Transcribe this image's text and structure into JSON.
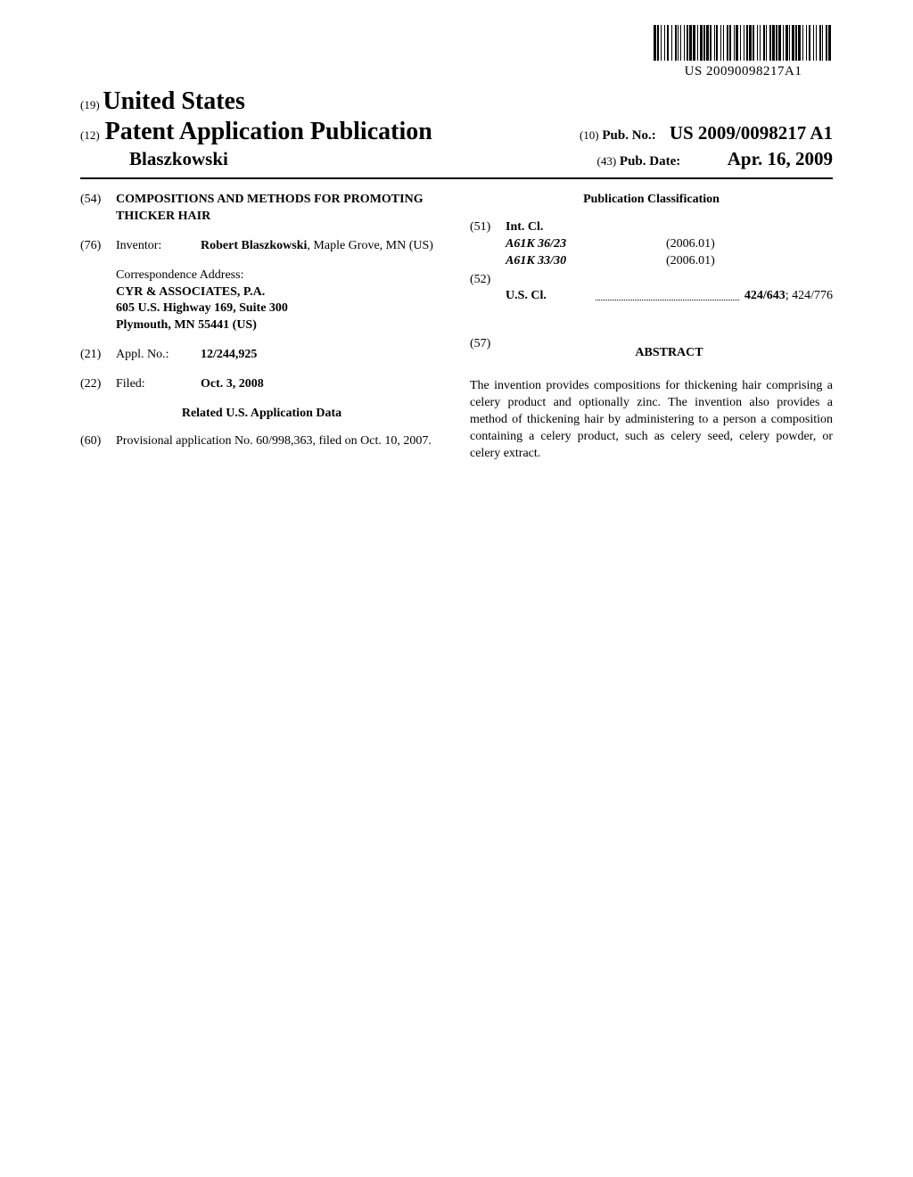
{
  "barcode": {
    "text": "US 20090098217A1",
    "widths": [
      3,
      1,
      2,
      2,
      1,
      3,
      1,
      2,
      2,
      3,
      1,
      3,
      2,
      1,
      1,
      2,
      1,
      3,
      1,
      2,
      2,
      1,
      3,
      1,
      3,
      2,
      1,
      2,
      3,
      1,
      2,
      1,
      3,
      1,
      2,
      3,
      1,
      1,
      2,
      3,
      1,
      2,
      1,
      3,
      2,
      1,
      2,
      3,
      1,
      1,
      3,
      2,
      1,
      3,
      1,
      2,
      2,
      1,
      3,
      1,
      2,
      3,
      1,
      2,
      1,
      3,
      2,
      1,
      1,
      3,
      2,
      1,
      3,
      1,
      2,
      1,
      3,
      2,
      1,
      2,
      3,
      1,
      1,
      2,
      3,
      1,
      2,
      1,
      3,
      2,
      1,
      3,
      1,
      2,
      2,
      3,
      1,
      2,
      1,
      3,
      2,
      1,
      1,
      3,
      2,
      1,
      3,
      2
    ]
  },
  "header": {
    "country_code": "(19)",
    "country": "United States",
    "kind_code": "(12)",
    "kind": "Patent Application Publication",
    "author": "Blaszkowski",
    "pubno_code": "(10)",
    "pubno_label": "Pub. No.:",
    "pubno": "US 2009/0098217 A1",
    "date_code": "(43)",
    "date_label": "Pub. Date:",
    "date": "Apr. 16, 2009"
  },
  "left": {
    "title_code": "(54)",
    "title": "COMPOSITIONS AND METHODS FOR PROMOTING THICKER HAIR",
    "inventor_code": "(76)",
    "inventor_label": "Inventor:",
    "inventor_name": "Robert Blaszkowski",
    "inventor_loc": ", Maple Grove, MN (US)",
    "corr_label": "Correspondence Address:",
    "corr_line1": "CYR & ASSOCIATES, P.A.",
    "corr_line2": "605 U.S. Highway 169, Suite 300",
    "corr_line3": "Plymouth, MN 55441 (US)",
    "appl_code": "(21)",
    "appl_label": "Appl. No.:",
    "appl_value": "12/244,925",
    "filed_code": "(22)",
    "filed_label": "Filed:",
    "filed_value": "Oct. 3, 2008",
    "related_heading": "Related U.S. Application Data",
    "prov_code": "(60)",
    "prov_text": "Provisional application No. 60/998,363, filed on Oct. 10, 2007."
  },
  "right": {
    "class_heading": "Publication Classification",
    "intcl_code": "(51)",
    "intcl_label": "Int. Cl.",
    "intcl_1_code": "A61K 36/23",
    "intcl_1_ver": "(2006.01)",
    "intcl_2_code": "A61K 33/30",
    "intcl_2_ver": "(2006.01)",
    "uscl_code": "(52)",
    "uscl_label": "U.S. Cl.",
    "uscl_primary": "424/643",
    "uscl_secondary": "; 424/776",
    "abstract_code": "(57)",
    "abstract_heading": "ABSTRACT",
    "abstract_text": "The invention provides compositions for thickening hair comprising a celery product and optionally zinc. The invention also provides a method of thickening hair by administering to a person a composition containing a celery product, such as celery seed, celery powder, or celery extract."
  }
}
